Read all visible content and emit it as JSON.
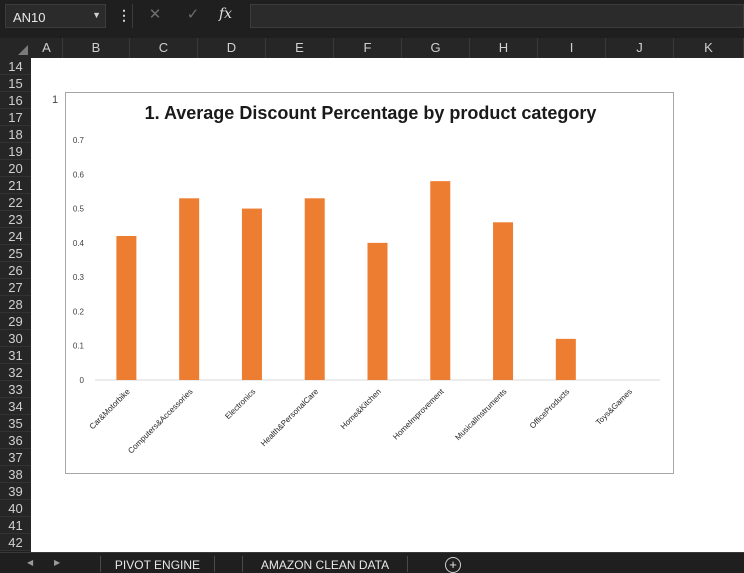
{
  "formula_bar": {
    "name_box": "AN10",
    "cancel_icon": "✕",
    "enter_icon": "✓",
    "fx_label": "fx",
    "formula": ""
  },
  "columns": [
    "A",
    "B",
    "C",
    "D",
    "E",
    "F",
    "G",
    "H",
    "I",
    "J",
    "K"
  ],
  "rows": [
    "14",
    "15",
    "16",
    "17",
    "18",
    "19",
    "20",
    "21",
    "22",
    "23",
    "24",
    "25",
    "26",
    "27",
    "28",
    "29",
    "30",
    "31",
    "32",
    "33",
    "34",
    "35",
    "36",
    "37",
    "38",
    "39",
    "40",
    "41",
    "42"
  ],
  "cell_value": "1",
  "colors": {
    "bar": "#ED7D31",
    "app_bg": "#1F1F1F",
    "sheet_bg": "#FFFFFF"
  },
  "chart_data": {
    "type": "bar",
    "title": "1. Average Discount Percentage by product category",
    "categories": [
      "Car&Motorbike",
      "Computers&Accessories",
      "Electronics",
      "Health&PersonalCare",
      "Home&Kitchen",
      "HomeImprovement",
      "MusicalInstruments",
      "OfficeProducts",
      "Toys&Games"
    ],
    "values": [
      0.42,
      0.53,
      0.5,
      0.53,
      0.4,
      0.58,
      0.46,
      0.12,
      0.0
    ],
    "y_ticks": [
      "0",
      "0.1",
      "0.2",
      "0.3",
      "0.4",
      "0.5",
      "0.6",
      "0.7"
    ],
    "ylim": [
      0,
      0.7
    ],
    "xlabel": "",
    "ylabel": "",
    "grid": false,
    "legend": false
  },
  "tabs": [
    "PIVOT ENGINE",
    "AMAZON CLEAN DATA"
  ]
}
